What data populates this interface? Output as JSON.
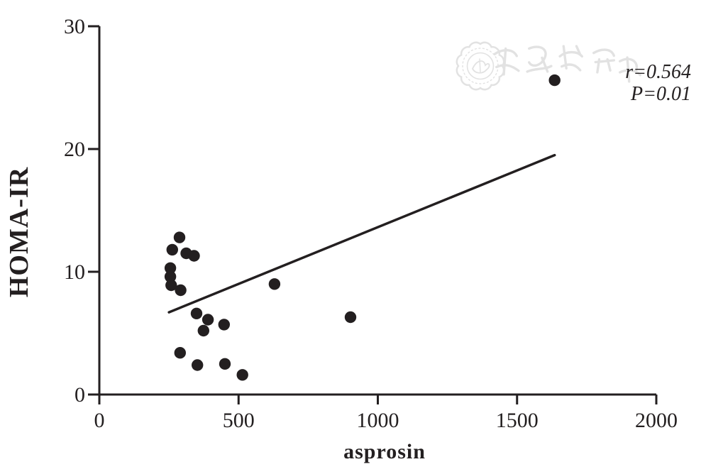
{
  "figure": {
    "background": "#ffffff",
    "ink_color": "#231f20",
    "watermark": {
      "text": "中华医学会",
      "color": "#e2e2e2",
      "seal": "chinese-medical-association-seal"
    }
  },
  "chart_data": {
    "type": "scatter",
    "title": "",
    "xlabel": "asprosin",
    "ylabel": "HOMA-IR",
    "xlim": [
      0,
      2000
    ],
    "ylim": [
      0,
      30
    ],
    "xticks": [
      0,
      500,
      1000,
      1500,
      2000
    ],
    "yticks": [
      0,
      10,
      20,
      30
    ],
    "grid": false,
    "legend_position": "none",
    "marker_color": "#231f20",
    "points": [
      [
        288,
        12.8
      ],
      [
        262,
        11.8
      ],
      [
        312,
        11.5
      ],
      [
        340,
        11.3
      ],
      [
        255,
        10.3
      ],
      [
        255,
        9.6
      ],
      [
        258,
        8.9
      ],
      [
        292,
        8.5
      ],
      [
        349,
        6.6
      ],
      [
        390,
        6.1
      ],
      [
        374,
        5.2
      ],
      [
        448,
        5.7
      ],
      [
        290,
        3.4
      ],
      [
        352,
        2.4
      ],
      [
        451,
        2.5
      ],
      [
        514,
        1.6
      ],
      [
        629,
        9.0
      ],
      [
        902,
        6.3
      ],
      [
        1635,
        25.6
      ]
    ],
    "trendline": {
      "x1": 250,
      "y1": 6.7,
      "x2": 1635,
      "y2": 19.5
    },
    "annotations": [
      "r=0.564",
      "P=0.01"
    ]
  }
}
